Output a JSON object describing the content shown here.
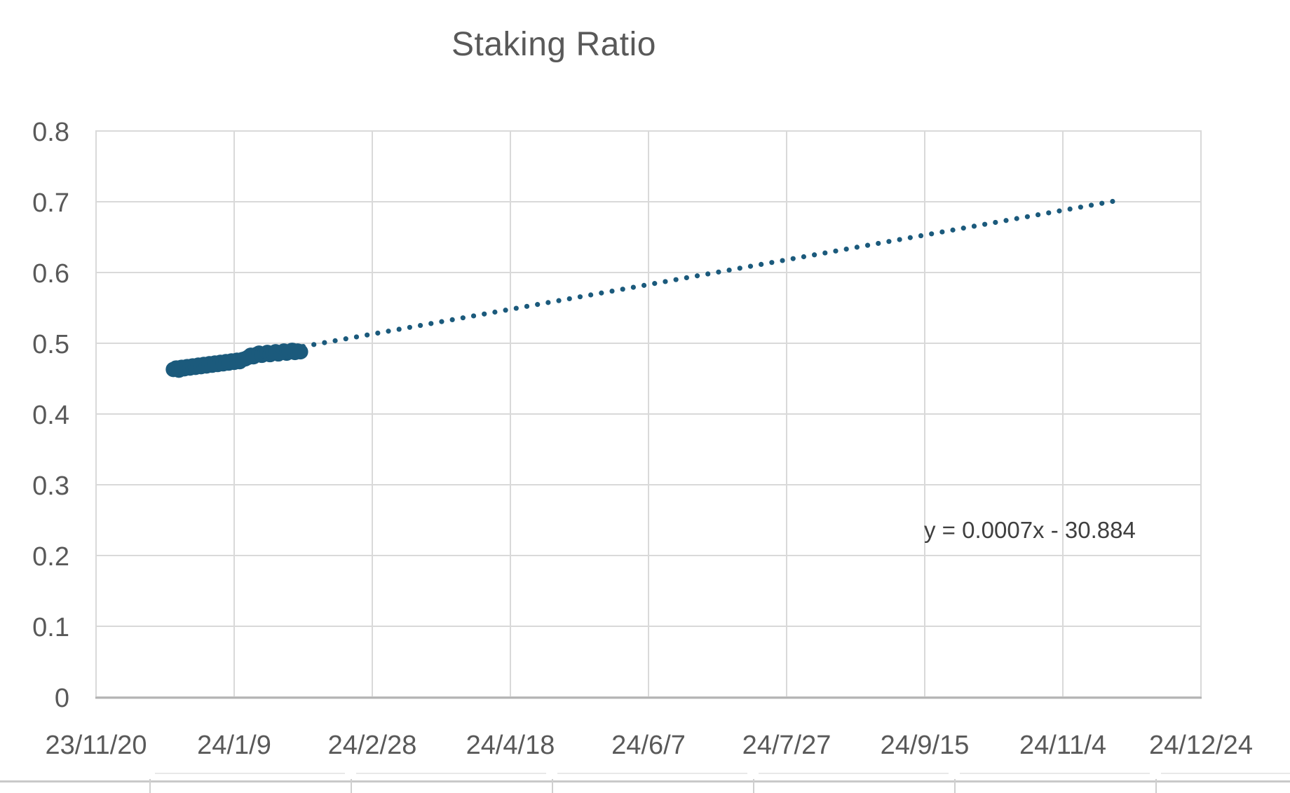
{
  "chart": {
    "title": "Staking Ratio",
    "trendline_equation": "y = 0.0007x - 30.884"
  },
  "chart_data": {
    "type": "scatter",
    "title": "Staking Ratio",
    "grid": true,
    "legend": "none",
    "colors": {
      "marker": "#1b5a7c",
      "trendline": "#1b5a7c",
      "gridline": "#d9d9d9",
      "plot_border": "#d9d9d9",
      "axis_line": "#b3b3b3",
      "axis_text": "#595959",
      "title_text": "#595959",
      "equation_text": "#3f3f3f"
    },
    "x_axis": {
      "type": "date",
      "min": "23/11/20",
      "max": "24/12/24",
      "tick_interval_days": 50,
      "tick_labels": [
        "23/11/20",
        "24/1/9",
        "24/2/28",
        "24/4/18",
        "24/6/7",
        "24/7/27",
        "24/9/15",
        "24/11/4",
        "24/12/24"
      ]
    },
    "y_axis": {
      "min": 0,
      "max": 0.8,
      "tick_step": 0.1,
      "tick_labels": [
        "0",
        "0.1",
        "0.2",
        "0.3",
        "0.4",
        "0.5",
        "0.6",
        "0.7",
        "0.8"
      ]
    },
    "series": [
      {
        "name": "Staking Ratio",
        "marker_radius_px": 11,
        "points": [
          {
            "d": "23/12/18",
            "v": 0.463
          },
          {
            "d": "23/12/19",
            "v": 0.465
          },
          {
            "d": "23/12/20",
            "v": 0.462
          },
          {
            "d": "23/12/21",
            "v": 0.466
          },
          {
            "d": "23/12/22",
            "v": 0.464
          },
          {
            "d": "23/12/23",
            "v": 0.467
          },
          {
            "d": "23/12/24",
            "v": 0.465
          },
          {
            "d": "23/12/25",
            "v": 0.468
          },
          {
            "d": "23/12/26",
            "v": 0.466
          },
          {
            "d": "23/12/27",
            "v": 0.469
          },
          {
            "d": "23/12/28",
            "v": 0.467
          },
          {
            "d": "23/12/29",
            "v": 0.47
          },
          {
            "d": "23/12/30",
            "v": 0.468
          },
          {
            "d": "23/12/31",
            "v": 0.471
          },
          {
            "d": "24/1/1",
            "v": 0.469
          },
          {
            "d": "24/1/2",
            "v": 0.472
          },
          {
            "d": "24/1/3",
            "v": 0.47
          },
          {
            "d": "24/1/4",
            "v": 0.473
          },
          {
            "d": "24/1/5",
            "v": 0.471
          },
          {
            "d": "24/1/6",
            "v": 0.474
          },
          {
            "d": "24/1/7",
            "v": 0.472
          },
          {
            "d": "24/1/8",
            "v": 0.475
          },
          {
            "d": "24/1/9",
            "v": 0.473
          },
          {
            "d": "24/1/10",
            "v": 0.476
          },
          {
            "d": "24/1/11",
            "v": 0.474
          },
          {
            "d": "24/1/12",
            "v": 0.477
          },
          {
            "d": "24/1/13",
            "v": 0.478
          },
          {
            "d": "24/1/14",
            "v": 0.48
          },
          {
            "d": "24/1/15",
            "v": 0.483
          },
          {
            "d": "24/1/16",
            "v": 0.481
          },
          {
            "d": "24/1/17",
            "v": 0.484
          },
          {
            "d": "24/1/18",
            "v": 0.486
          },
          {
            "d": "24/1/19",
            "v": 0.483
          },
          {
            "d": "24/1/20",
            "v": 0.485
          },
          {
            "d": "24/1/21",
            "v": 0.487
          },
          {
            "d": "24/1/22",
            "v": 0.484
          },
          {
            "d": "24/1/23",
            "v": 0.486
          },
          {
            "d": "24/1/24",
            "v": 0.488
          },
          {
            "d": "24/1/25",
            "v": 0.485
          },
          {
            "d": "24/1/26",
            "v": 0.487
          },
          {
            "d": "24/1/27",
            "v": 0.489
          },
          {
            "d": "24/1/28",
            "v": 0.486
          },
          {
            "d": "24/1/29",
            "v": 0.488
          },
          {
            "d": "24/1/30",
            "v": 0.49
          },
          {
            "d": "24/1/31",
            "v": 0.487
          },
          {
            "d": "24/2/1",
            "v": 0.489
          },
          {
            "d": "24/2/2",
            "v": 0.488
          }
        ]
      }
    ],
    "trendline": {
      "style": "dotted",
      "equation": "y = 0.0007x - 30.884",
      "start": {
        "d": "24/2/3",
        "v": 0.4955
      },
      "end": {
        "d": "24/11/22",
        "v": 0.7005
      }
    }
  }
}
